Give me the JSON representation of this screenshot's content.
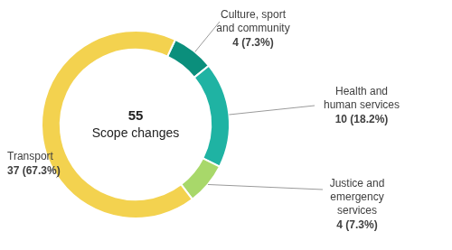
{
  "chart_data": {
    "type": "doughnut",
    "categories": [
      "Culture, sport and community",
      "Health and human services",
      "Justice and emergency services",
      "Transport"
    ],
    "values": [
      4,
      10,
      4,
      37
    ],
    "value_labels": [
      "4 (7.3%)",
      "10 (18.2%)",
      "4 (7.3%)",
      "37 (67.3%)"
    ],
    "colors": [
      "#0b8f7c",
      "#1fb3a3",
      "#a8d86a",
      "#f3d24f"
    ],
    "total": 55,
    "total_label": "Scope changes",
    "data_labels": true
  }
}
